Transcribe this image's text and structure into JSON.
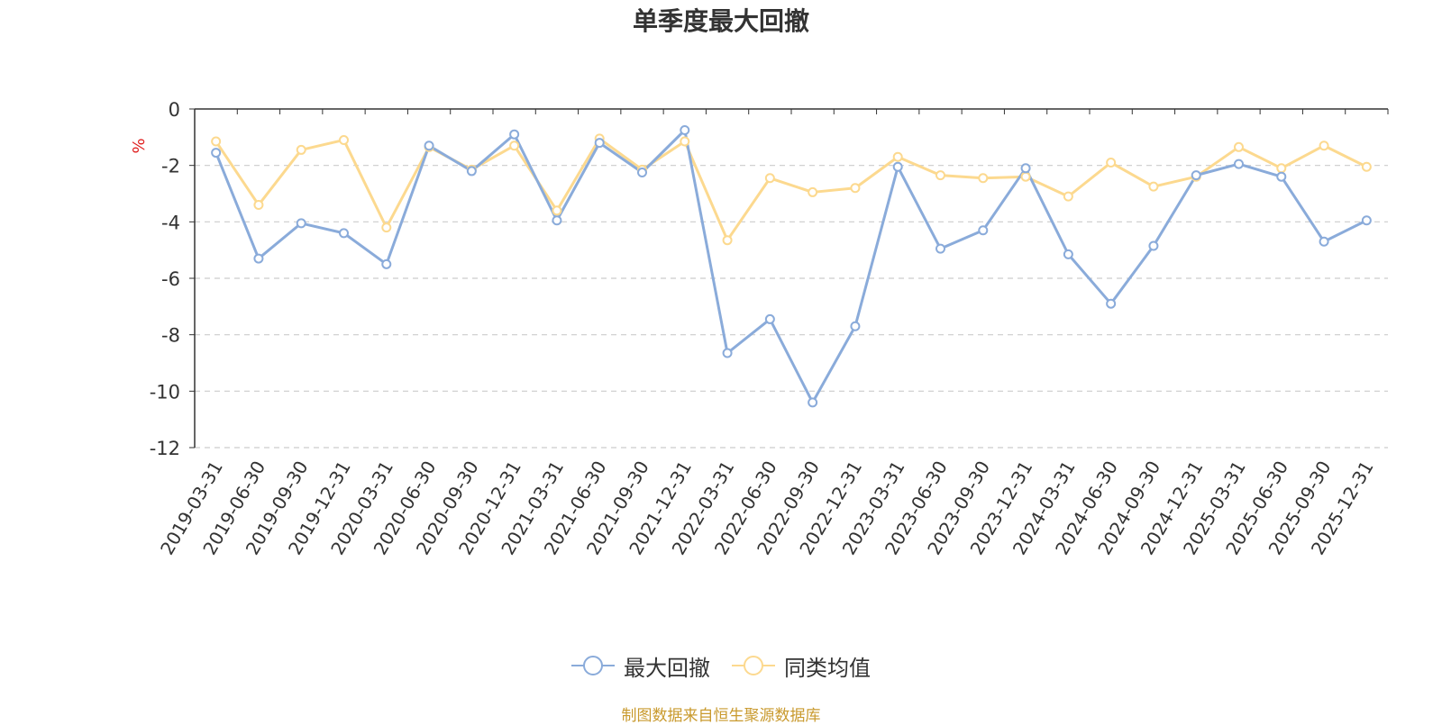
{
  "chart_data": {
    "type": "line",
    "title": "单季度最大回撤",
    "ylabel": "%",
    "xlabel": "",
    "ylim": [
      -12,
      0
    ],
    "yticks": [
      0,
      -2,
      -4,
      -6,
      -8,
      -10,
      -12
    ],
    "grid": true,
    "legend_position": "bottom-center",
    "categories": [
      "2019-03-31",
      "2019-06-30",
      "2019-09-30",
      "2019-12-31",
      "2020-03-31",
      "2020-06-30",
      "2020-09-30",
      "2020-12-31",
      "2021-03-31",
      "2021-06-30",
      "2021-09-30",
      "2021-12-31",
      "2022-03-31",
      "2022-06-30",
      "2022-09-30",
      "2022-12-31",
      "2023-03-31",
      "2023-06-30",
      "2023-09-30",
      "2023-12-31",
      "2024-03-31",
      "2024-06-30",
      "2024-09-30",
      "2024-12-31",
      "2025-03-31",
      "2025-06-30",
      "2025-09-30",
      "2025-12-31"
    ],
    "series": [
      {
        "name": "最大回撤",
        "color": "#8aabda",
        "values": [
          -1.55,
          -5.3,
          -4.05,
          -4.4,
          -5.5,
          -1.3,
          -2.2,
          -0.9,
          -3.95,
          -1.2,
          -2.25,
          -0.75,
          -8.65,
          -7.45,
          -10.4,
          -7.7,
          -2.05,
          -4.95,
          -4.3,
          -2.1,
          -5.15,
          -6.9,
          -4.85,
          -2.35,
          -1.95,
          -2.4,
          -4.7,
          -3.95
        ]
      },
      {
        "name": "同类均值",
        "color": "#fcd98f",
        "values": [
          -1.15,
          -3.4,
          -1.45,
          -1.1,
          -4.2,
          -1.35,
          -2.15,
          -1.3,
          -3.6,
          -1.05,
          -2.15,
          -1.15,
          -4.65,
          -2.45,
          -2.95,
          -2.8,
          -1.7,
          -2.35,
          -2.45,
          -2.4,
          -3.1,
          -1.9,
          -2.75,
          -2.4,
          -1.35,
          -2.1,
          -1.3,
          -2.05
        ]
      }
    ]
  },
  "footer": {
    "source_text": "制图数据来自恒生聚源数据库"
  }
}
